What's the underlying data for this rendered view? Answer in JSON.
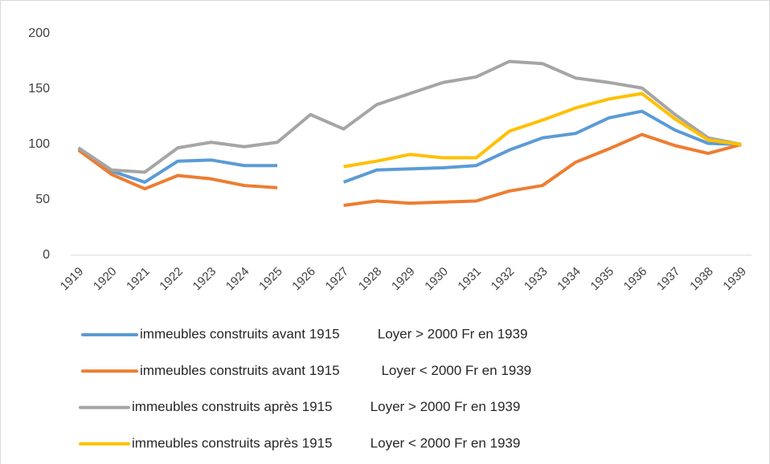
{
  "chart_data": {
    "type": "line",
    "categories": [
      "1919",
      "1920",
      "1921",
      "1922",
      "1923",
      "1924",
      "1925",
      "1926",
      "1927",
      "1928",
      "1929",
      "1930",
      "1931",
      "1932",
      "1933",
      "1934",
      "1935",
      "1936",
      "1937",
      "1938",
      "1939"
    ],
    "ylim": [
      0,
      200
    ],
    "yticks": [
      0,
      50,
      100,
      150,
      200
    ],
    "grid": false,
    "series": [
      {
        "name": "immeubles construits avant 1915          Loyer > 2000 Fr en 1939",
        "color": "#5b9bd5",
        "values": [
          97,
          76,
          66,
          85,
          86,
          81,
          81,
          null,
          66,
          77,
          78,
          79,
          81,
          95,
          106,
          110,
          124,
          130,
          113,
          101,
          100
        ]
      },
      {
        "name": "immeubles construits avant 1915           Loyer < 2000 Fr en 1939",
        "color": "#ed7d31",
        "values": [
          95,
          73,
          60,
          72,
          69,
          63,
          61,
          null,
          45,
          49,
          47,
          48,
          49,
          58,
          63,
          84,
          96,
          109,
          99,
          92,
          100
        ]
      },
      {
        "name": "immeubles construits après 1915          Loyer > 2000 Fr en 1939",
        "color": "#a5a5a5",
        "values": [
          97,
          77,
          75,
          97,
          102,
          98,
          102,
          127,
          114,
          136,
          146,
          156,
          161,
          175,
          173,
          160,
          156,
          151,
          127,
          106,
          100
        ]
      },
      {
        "name": "immeubles construits après 1915          Loyer < 2000 Fr en 1939",
        "color": "#ffc000",
        "values": [
          null,
          null,
          null,
          null,
          null,
          null,
          null,
          null,
          80,
          85,
          91,
          88,
          88,
          112,
          122,
          133,
          141,
          146,
          123,
          104,
          100
        ]
      }
    ]
  }
}
